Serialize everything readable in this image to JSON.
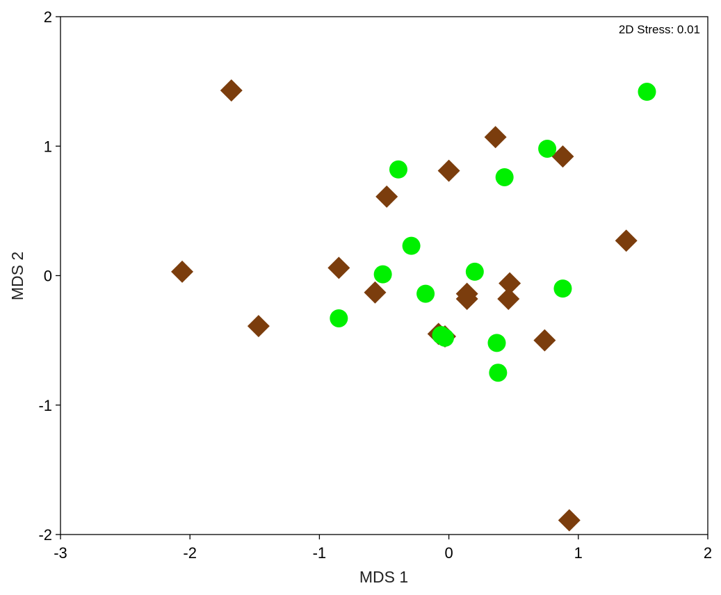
{
  "chart_data": {
    "type": "scatter",
    "xlabel": "MDS 1",
    "ylabel": "MDS 2",
    "xlim": [
      -3,
      2
    ],
    "ylim": [
      -2,
      2
    ],
    "x_ticks": [
      "-3",
      "-2",
      "-1",
      "0",
      "1",
      "2"
    ],
    "y_ticks": [
      "-2",
      "-1",
      "0",
      "1",
      "2"
    ],
    "annotation": "2D Stress: 0.01",
    "grid": false,
    "series": [
      {
        "marker": "diamond",
        "color": "#7b3d0d",
        "points": [
          [
            -1.68,
            1.43
          ],
          [
            -2.06,
            0.03
          ],
          [
            -1.47,
            -0.39
          ],
          [
            -0.85,
            0.06
          ],
          [
            -0.57,
            -0.13
          ],
          [
            -0.48,
            0.61
          ],
          [
            0.0,
            0.81
          ],
          [
            0.36,
            1.07
          ],
          [
            0.88,
            0.92
          ],
          [
            1.37,
            0.27
          ],
          [
            0.14,
            -0.14
          ],
          [
            0.14,
            -0.18
          ],
          [
            0.47,
            -0.06
          ],
          [
            0.46,
            -0.18
          ],
          [
            -0.08,
            -0.45
          ],
          [
            -0.03,
            -0.47
          ],
          [
            0.74,
            -0.5
          ],
          [
            0.93,
            -1.89
          ]
        ]
      },
      {
        "marker": "circle",
        "color": "#00f000",
        "points": [
          [
            1.53,
            1.42
          ],
          [
            0.76,
            0.98
          ],
          [
            0.43,
            0.76
          ],
          [
            -0.39,
            0.82
          ],
          [
            -0.29,
            0.23
          ],
          [
            -0.51,
            0.01
          ],
          [
            0.2,
            0.03
          ],
          [
            0.88,
            -0.1
          ],
          [
            -0.18,
            -0.14
          ],
          [
            -0.85,
            -0.33
          ],
          [
            -0.06,
            -0.46
          ],
          [
            -0.03,
            -0.48
          ],
          [
            0.37,
            -0.52
          ],
          [
            0.38,
            -0.75
          ]
        ]
      }
    ]
  }
}
